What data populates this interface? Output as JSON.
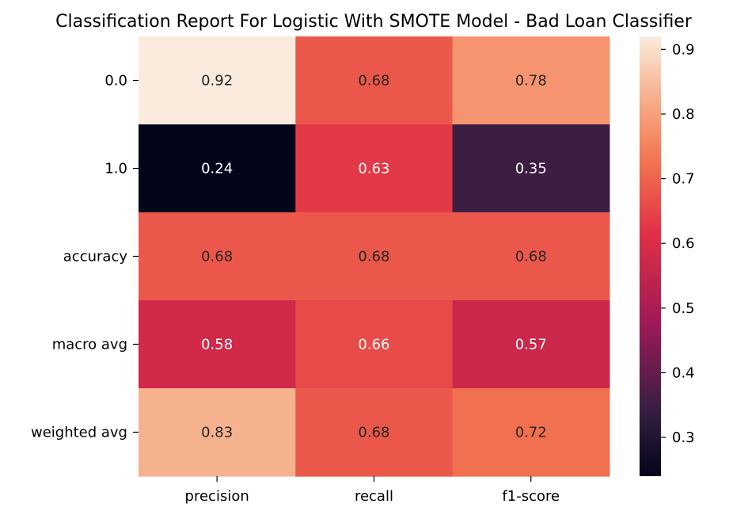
{
  "chart_data": {
    "type": "heatmap",
    "title": "Classification Report For Logistic With SMOTE Model - Bad Loan Classifier",
    "xlabel": "",
    "ylabel": "",
    "x_categories": [
      "precision",
      "recall",
      "f1-score"
    ],
    "y_categories": [
      "0.0",
      "1.0",
      "accuracy",
      "macro avg",
      "weighted avg"
    ],
    "values": [
      [
        0.92,
        0.68,
        0.78
      ],
      [
        0.24,
        0.63,
        0.35
      ],
      [
        0.68,
        0.68,
        0.68
      ],
      [
        0.58,
        0.66,
        0.57
      ],
      [
        0.83,
        0.68,
        0.72
      ]
    ],
    "cell_labels": [
      [
        "0.92",
        "0.68",
        "0.78"
      ],
      [
        "0.24",
        "0.63",
        "0.35"
      ],
      [
        "0.68",
        "0.68",
        "0.68"
      ],
      [
        "0.58",
        "0.66",
        "0.57"
      ],
      [
        "0.83",
        "0.68",
        "0.72"
      ]
    ],
    "colormap": "rocket",
    "value_range": [
      0.24,
      0.92
    ],
    "colorbar_ticks": [
      0.9,
      0.8,
      0.7,
      0.6,
      0.5,
      0.4,
      0.3
    ],
    "colorbar_tick_labels": [
      "0.9",
      "0.8",
      "0.7",
      "0.6",
      "0.5",
      "0.4",
      "0.3"
    ],
    "grid": false,
    "legend": "colorbar-right"
  }
}
